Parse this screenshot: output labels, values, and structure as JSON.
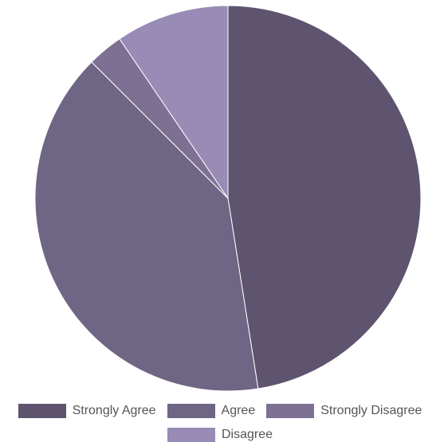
{
  "chart_data": {
    "type": "pie",
    "title": "",
    "categories": [
      "Strongly Agree",
      "Agree",
      "Strongly Disagree",
      "Disagree"
    ],
    "values": [
      47.5,
      40,
      3,
      9.5
    ],
    "colors": [
      "#5e5470",
      "#6f6584",
      "#7d7093",
      "#988bb6"
    ],
    "start_angle_deg": 0,
    "direction": "clockwise",
    "legend_position": "bottom",
    "slice_border_color": "#ffffff"
  }
}
